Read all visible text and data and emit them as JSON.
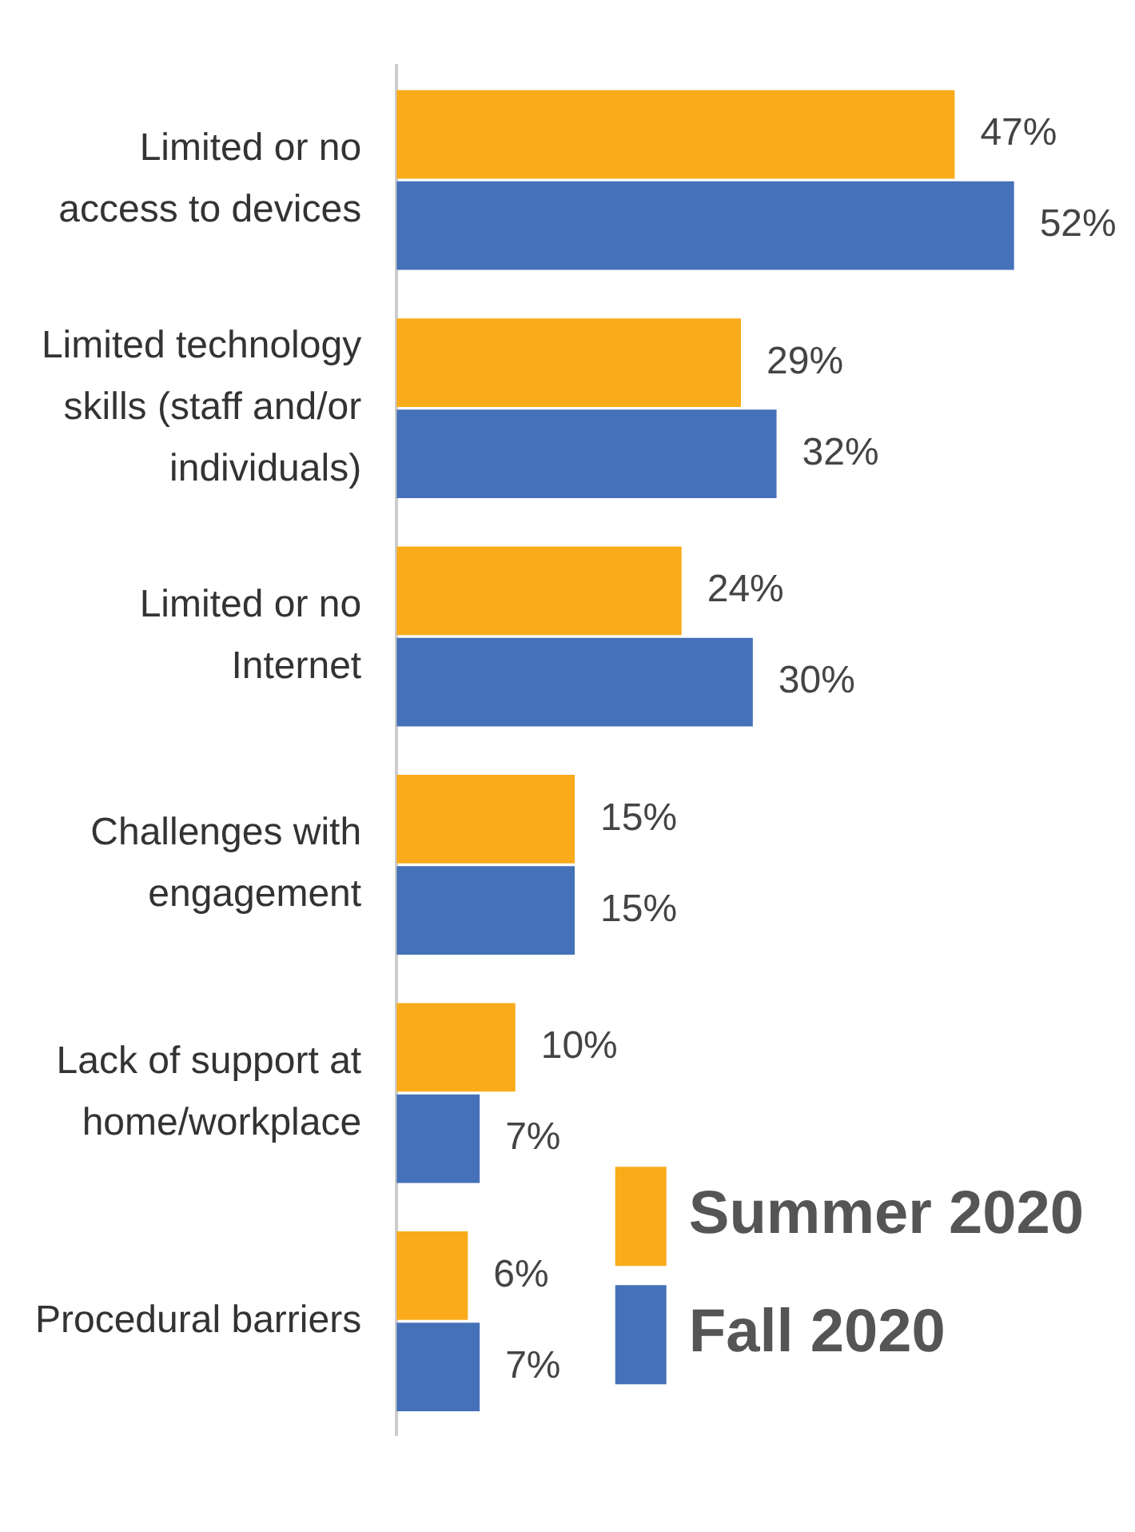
{
  "chart_data": {
    "type": "bar",
    "orientation": "horizontal",
    "relative": false,
    "categories": [
      "Limited or no\naccess to devices",
      "Limited technology\nskills (staff and/or\nindividuals)",
      "Limited or no\nInternet",
      "Challenges with\nengagement",
      "Lack of support at\nhome/workplace",
      "Procedural barriers"
    ],
    "series": [
      {
        "name": "Summer 2020",
        "color": "#f9ab1a",
        "values": [
          47,
          29,
          24,
          15,
          10,
          6
        ],
        "value_labels": [
          "47%",
          "29%",
          "24%",
          "15%",
          "10%",
          "6%"
        ]
      },
      {
        "name": "Fall 2020",
        "color": "#4571b8",
        "values": [
          52,
          32,
          30,
          15,
          7,
          7
        ],
        "value_labels": [
          "52%",
          "32%",
          "30%",
          "15%",
          "7%",
          "7%"
        ]
      }
    ],
    "legend": "bottom right"
  }
}
